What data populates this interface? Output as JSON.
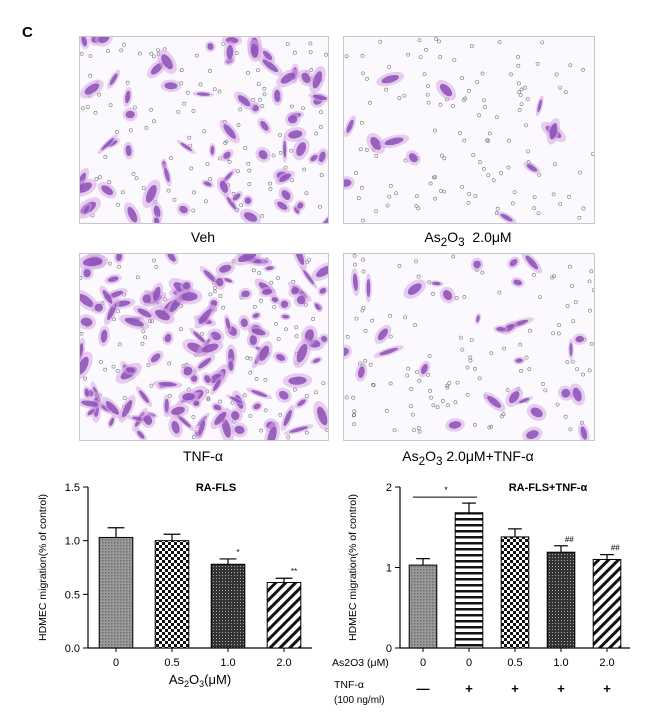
{
  "panel_label": "C",
  "images": [
    {
      "caption": "Veh",
      "caption_sub": ""
    },
    {
      "caption_prefix": "As",
      "caption_sub_a": "2",
      "caption_mid": "O",
      "caption_sub_b": "3",
      "caption_suffix": "  2.0μM"
    },
    {
      "caption": "TNF-α"
    },
    {
      "caption_prefix": "As",
      "caption_sub_a": "2",
      "caption_mid": "O",
      "caption_sub_b": "3",
      "caption_suffix": " 2.0μM+TNF-α"
    }
  ],
  "colors": {
    "cell_purple": "#8a4fb5",
    "cell_pink": "#d7a8e3",
    "frame": "#c9c5cf"
  },
  "chart_data": [
    {
      "type": "bar",
      "title": "RA-FLS",
      "ylabel": "HDMEC migration(% of control)",
      "xlabel": "As2O3(μM)",
      "categories": [
        "0",
        "0.5",
        "1.0",
        "2.0"
      ],
      "values": [
        1.03,
        1.0,
        0.78,
        0.61
      ],
      "errors": [
        0.09,
        0.06,
        0.05,
        0.04
      ],
      "significance": [
        "",
        "",
        "*",
        "**"
      ],
      "patterns": [
        "grey",
        "checker",
        "dark",
        "hatch"
      ],
      "ylim": [
        0,
        1.5
      ],
      "yticks": [
        "0.0",
        "0.5",
        "1.0",
        "1.5"
      ]
    },
    {
      "type": "bar",
      "title": "RA-FLS+TNF-α",
      "ylabel": "HDMEC migration(% of control)",
      "categories": [
        "0",
        "0",
        "0.5",
        "1.0",
        "2.0"
      ],
      "values": [
        1.03,
        1.68,
        1.38,
        1.19,
        1.1
      ],
      "errors": [
        0.08,
        0.12,
        0.1,
        0.08,
        0.06
      ],
      "significance": [
        "",
        "",
        "",
        "##",
        "##"
      ],
      "comparison_star": "*",
      "patterns": [
        "grey",
        "hstripe",
        "checker",
        "dark",
        "hatch"
      ],
      "ylim": [
        0,
        2
      ],
      "yticks": [
        "0",
        "1",
        "2"
      ],
      "row1_label": "As2O3 (μM)",
      "row2_label": "TNF-α",
      "row2_sub": "(100 ng/ml)",
      "tnf_signs": [
        "—",
        "+",
        "+",
        "+",
        "+"
      ]
    }
  ]
}
